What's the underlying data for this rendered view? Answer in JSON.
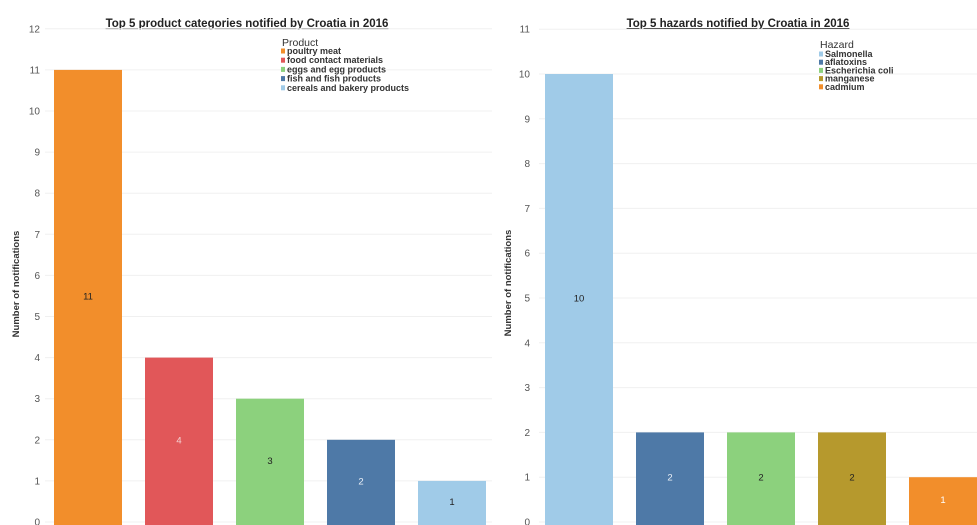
{
  "chart_data": [
    {
      "type": "bar",
      "title": "Top 5 product categories notified by Croatia in 2016",
      "ylabel": "Number of notifications",
      "xlabel": "",
      "ylim": [
        0,
        12
      ],
      "yticks": [
        0,
        1,
        2,
        3,
        4,
        5,
        6,
        7,
        8,
        9,
        10,
        11,
        12
      ],
      "grid": true,
      "legend_title": "Product",
      "legend_position": "top-right",
      "categories": [
        "poultry meat",
        "food contact materials",
        "eggs and egg products",
        "fish and fish products",
        "cereals and bakery products"
      ],
      "values": [
        11,
        4,
        3,
        2,
        1
      ],
      "colors": [
        "#f28e2b",
        "#e15759",
        "#8cd17d",
        "#4e79a7",
        "#a0cbe8"
      ],
      "label_colors": [
        "#222222",
        "#f5d5d5",
        "#222222",
        "#e8eef6",
        "#222222"
      ]
    },
    {
      "type": "bar",
      "title": "Top 5 hazards notified by Croatia in 2016",
      "ylabel": "Number of notifications",
      "xlabel": "",
      "ylim": [
        0,
        11
      ],
      "yticks": [
        0,
        1,
        2,
        3,
        4,
        5,
        6,
        7,
        8,
        9,
        10,
        11
      ],
      "grid": true,
      "legend_title": "Hazard",
      "legend_position": "top-right",
      "categories": [
        "Salmonella",
        "aflatoxins",
        "Escherichia coli",
        "manganese",
        "cadmium"
      ],
      "values": [
        10,
        2,
        2,
        2,
        1
      ],
      "colors": [
        "#a0cbe8",
        "#4e79a7",
        "#8cd17d",
        "#b6992d",
        "#f28e2b"
      ],
      "label_colors": [
        "#222222",
        "#e8eef6",
        "#222222",
        "#222222",
        "#ffffff"
      ]
    }
  ]
}
